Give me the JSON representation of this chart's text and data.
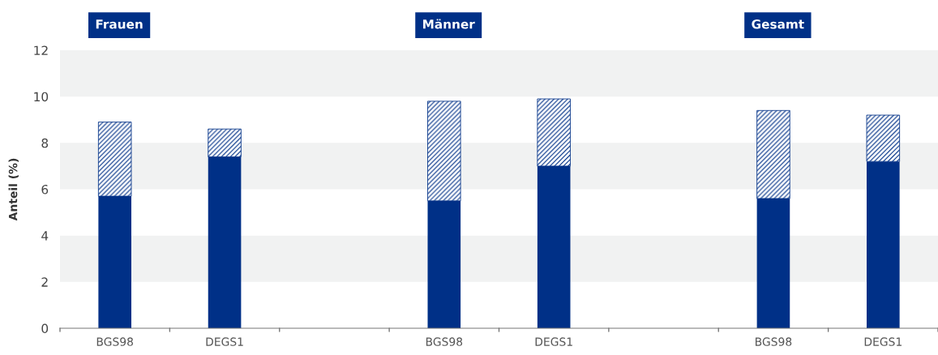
{
  "chart_data": {
    "type": "bar",
    "stacked": true,
    "ylabel": "Anteil (%)",
    "categories": [
      "BGS98",
      "DEGS1",
      null,
      "BGS98",
      "DEGS1",
      null,
      "BGS98",
      "DEGS1"
    ],
    "series": [
      {
        "color": "#003087",
        "values": [
          5.7,
          7.4,
          null,
          5.5,
          7.0,
          null,
          5.6,
          7.2
        ]
      },
      {
        "color": "#003087",
        "values": [
          3.2,
          1.2,
          null,
          4.3,
          2.9,
          null,
          3.8,
          2.0
        ]
      }
    ],
    "ylim": [
      0,
      12
    ],
    "yticks": [
      0,
      2,
      4,
      6,
      8,
      10,
      12
    ],
    "grid": false,
    "legend": false,
    "bands": [
      {
        "axis": "y",
        "from": 2,
        "to": 4,
        "color": "#f1f2f2"
      },
      {
        "axis": "y",
        "from": 6,
        "to": 8,
        "color": "#f1f2f2"
      },
      {
        "axis": "y",
        "from": 10,
        "to": 12,
        "color": "#f1f2f2"
      }
    ],
    "annotations": [
      "Frauen",
      "Männer",
      "Gesamt"
    ]
  }
}
